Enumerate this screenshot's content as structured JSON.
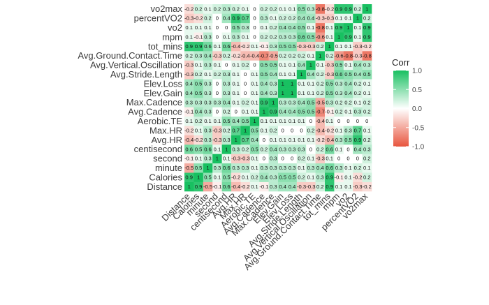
{
  "chart_data": {
    "type": "heatmap",
    "variables": [
      "Distance",
      "Calories",
      "minute",
      "second",
      "centisecond",
      "Avg.HR",
      "Max.HR",
      "Aerobic.TE",
      "Avg.Cadence",
      "Max.Cadence",
      "Elev.Gain",
      "Elev.Loss",
      "Avg.Stride.Length",
      "Avg.Vertical.Oscillation",
      "Avg.Ground.Contact.Time",
      "tot_mins",
      "mpm",
      "vo2",
      "percentVO2",
      "vo2max"
    ],
    "matrix": [
      [
        1.0,
        0.9,
        -0.5,
        -0.1,
        0.6,
        -0.4,
        -0.2,
        0.1,
        -0.1,
        0.3,
        0.4,
        0.4,
        -0.3,
        -0.3,
        0.2,
        0.9,
        0.1,
        0.1,
        -0.3,
        -0.2
      ],
      [
        0.9,
        1.0,
        0.5,
        0.1,
        0.5,
        -0.2,
        0.1,
        0.2,
        0.4,
        0.3,
        0.5,
        0.5,
        0.2,
        0.1,
        0.3,
        0.9,
        -0.1,
        0.1,
        -0.2,
        0.2
      ],
      [
        -0.5,
        0.5,
        1.0,
        0.3,
        0.6,
        0.3,
        0.3,
        0.1,
        0.3,
        0.3,
        0.3,
        0.3,
        0.1,
        0.3,
        0.4,
        0.6,
        0.3,
        0.1,
        0.2,
        0.1
      ],
      [
        -0.1,
        0.1,
        0.3,
        1.0,
        0.1,
        -0.3,
        -0.3,
        0.1,
        0.0,
        0.3,
        0.0,
        0.0,
        0.2,
        0.1,
        -0.3,
        0.1,
        0.0,
        0.0,
        0.0,
        0.2
      ],
      [
        0.6,
        0.5,
        0.6,
        0.1,
        1.0,
        0.3,
        0.2,
        0.5,
        0.2,
        0.4,
        0.3,
        0.3,
        0.3,
        0.0,
        0.2,
        0.6,
        0.1,
        0.0,
        0.4,
        0.3
      ],
      [
        -0.4,
        -0.2,
        0.3,
        -0.3,
        0.3,
        1.0,
        0.7,
        0.4,
        0.0,
        0.1,
        0.1,
        0.1,
        0.1,
        0.1,
        -0.2,
        -0.4,
        0.3,
        0.5,
        0.9,
        0.2
      ],
      [
        -0.2,
        0.1,
        0.3,
        -0.3,
        0.2,
        0.7,
        1.0,
        0.5,
        0.1,
        0.2,
        0.0,
        0.0,
        0.0,
        0.2,
        -0.4,
        -0.2,
        0.1,
        0.3,
        0.7,
        0.1
      ],
      [
        0.1,
        0.2,
        0.1,
        0.1,
        0.5,
        0.4,
        0.5,
        1.0,
        0.1,
        0.1,
        0.1,
        0.1,
        0.1,
        0.0,
        -0.4,
        0.1,
        0.0,
        0.0,
        0.0,
        0.0
      ],
      [
        -0.1,
        0.4,
        0.3,
        0.0,
        0.2,
        0.0,
        0.1,
        0.1,
        1.0,
        0.9,
        0.4,
        0.4,
        0.5,
        0.5,
        -0.7,
        -0.1,
        0.2,
        0.1,
        0.3,
        0.2
      ],
      [
        0.3,
        0.3,
        0.3,
        0.3,
        0.4,
        0.1,
        0.2,
        0.1,
        0.9,
        1.0,
        0.3,
        0.3,
        0.4,
        0.5,
        -0.5,
        0.3,
        0.2,
        0.2,
        0.1,
        0.2
      ],
      [
        0.4,
        0.5,
        0.3,
        0.0,
        0.3,
        0.1,
        0.0,
        0.1,
        0.4,
        0.3,
        1.0,
        1.0,
        0.1,
        0.1,
        0.2,
        0.5,
        0.3,
        0.4,
        0.2,
        0.1
      ],
      [
        0.4,
        0.5,
        0.3,
        0.0,
        0.3,
        0.1,
        0.0,
        0.1,
        0.4,
        0.3,
        1.0,
        1.0,
        0.1,
        0.1,
        0.2,
        0.5,
        0.3,
        0.4,
        0.2,
        0.1
      ],
      [
        -0.3,
        0.2,
        0.1,
        0.2,
        0.3,
        0.1,
        0.0,
        0.1,
        0.5,
        0.4,
        0.1,
        0.1,
        1.0,
        0.4,
        0.2,
        -0.3,
        0.6,
        0.5,
        0.4,
        0.5
      ],
      [
        -0.3,
        0.1,
        0.3,
        0.1,
        0.0,
        0.1,
        0.2,
        0.0,
        0.5,
        0.5,
        0.1,
        0.1,
        0.4,
        1.0,
        0.1,
        -0.3,
        0.5,
        0.1,
        0.4,
        0.3
      ],
      [
        0.2,
        0.3,
        0.4,
        -0.3,
        0.2,
        -0.2,
        -0.4,
        -0.4,
        -0.7,
        -0.5,
        0.2,
        0.2,
        0.2,
        0.1,
        1.0,
        0.2,
        -0.6,
        -0.8,
        -0.3,
        -0.8
      ],
      [
        0.9,
        0.9,
        0.6,
        0.1,
        0.6,
        -0.4,
        -0.2,
        0.1,
        -0.1,
        0.3,
        0.5,
        0.5,
        -0.3,
        -0.3,
        0.2,
        1.0,
        0.1,
        0.1,
        -0.3,
        -0.2
      ],
      [
        0.1,
        -0.1,
        0.3,
        0.0,
        0.1,
        0.3,
        0.1,
        0.0,
        0.2,
        0.2,
        0.3,
        0.3,
        0.6,
        0.5,
        -0.6,
        0.1,
        1.0,
        0.9,
        0.1,
        0.9
      ],
      [
        0.1,
        0.1,
        0.1,
        0.0,
        0.0,
        0.5,
        0.3,
        0.0,
        0.1,
        0.2,
        0.4,
        0.4,
        0.5,
        0.1,
        -0.8,
        0.1,
        0.9,
        1.0,
        0.1,
        0.9
      ],
      [
        -0.3,
        -0.2,
        0.2,
        0.0,
        0.4,
        0.9,
        0.7,
        0.0,
        0.3,
        0.1,
        0.2,
        0.2,
        0.4,
        0.4,
        -0.3,
        -0.3,
        0.1,
        0.1,
        1.0,
        0.2
      ],
      [
        -0.2,
        0.2,
        0.1,
        0.2,
        0.3,
        0.2,
        0.1,
        0.0,
        0.2,
        0.2,
        0.1,
        0.1,
        0.5,
        0.3,
        -0.8,
        -0.2,
        0.9,
        0.9,
        0.2,
        1.0
      ]
    ],
    "legend": {
      "title": "Corr",
      "ticks": [
        1.0,
        0.5,
        0.0,
        -0.5,
        -1.0
      ],
      "tick_labels": [
        "1.0",
        "0.5",
        "0.0",
        "-0.5",
        "-1.0"
      ],
      "placement": "right"
    },
    "color_scale": {
      "low": "#e8553e",
      "mid": "#ffffff",
      "high": "#18c061"
    },
    "value_range": [
      -1,
      1
    ],
    "grid": false
  }
}
